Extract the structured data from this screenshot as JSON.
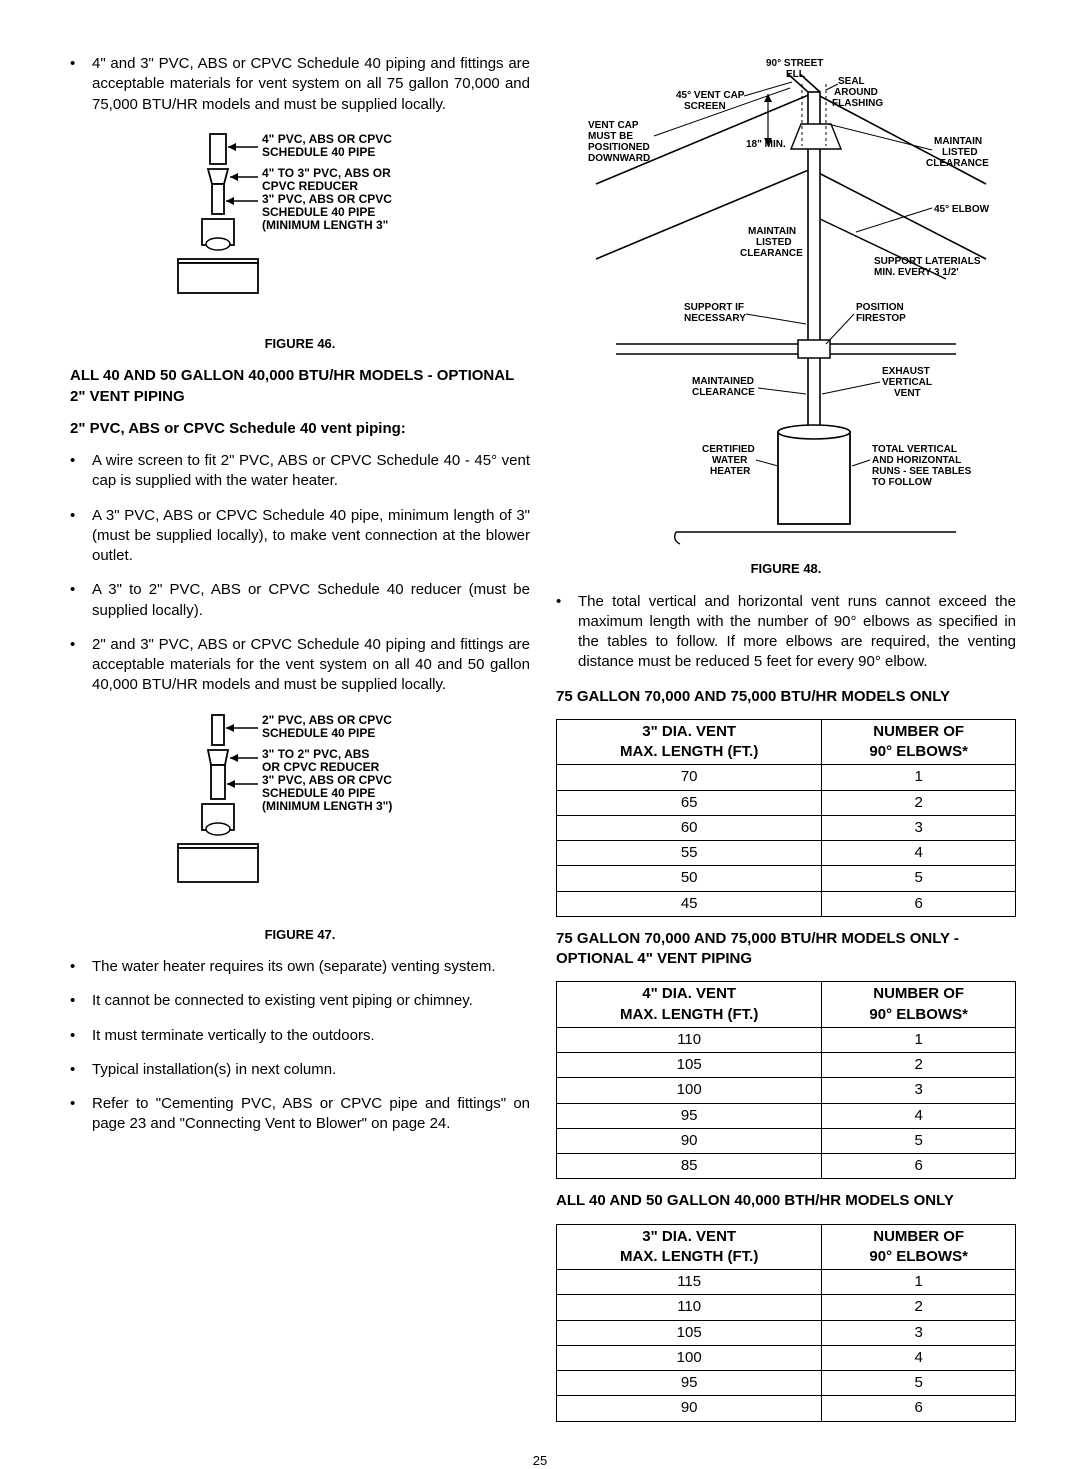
{
  "left": {
    "intro_bullet": "4\" and 3\" PVC, ABS or CPVC Schedule 40 piping and fittings are acceptable materials for vent system on all 75 gallon 70,000 and 75,000 BTU/HR models and must be supplied locally.",
    "fig46_caption": "FIGURE 46.",
    "fig46_labels": {
      "l1": "4\" PVC, ABS OR CPVC SCHEDULE 40 PIPE",
      "l2": "4\" TO 3\" PVC, ABS OR CPVC REDUCER",
      "l3": "3\" PVC, ABS OR CPVC SCHEDULE 40 PIPE (MINIMUM LENGTH 3\""
    },
    "hdr1": "ALL 40 AND 50 GALLON 40,000 BTU/HR MODELS - OPTIONAL 2\" VENT PIPING",
    "hdr2": "2\" PVC, ABS or CPVC Schedule 40 vent piping:",
    "bullets2": [
      "A wire screen to fit 2\" PVC, ABS or CPVC Schedule 40 - 45° vent cap is supplied with the water heater.",
      "A 3\" PVC, ABS or CPVC Schedule 40 pipe, minimum length of 3\" (must be supplied locally), to make vent connection at the blower outlet.",
      "A 3\" to 2\" PVC, ABS or CPVC Schedule 40 reducer (must be supplied locally).",
      "2\" and 3\" PVC, ABS or CPVC Schedule 40 piping and fittings are acceptable materials for the vent system on all 40 and 50 gallon 40,000 BTU/HR models and must be supplied locally."
    ],
    "fig47_caption": "FIGURE 47.",
    "fig47_labels": {
      "l1": "2\" PVC, ABS OR CPVC SCHEDULE 40 PIPE",
      "l2": "3\" TO 2\" PVC, ABS OR CPVC REDUCER",
      "l3": "3\" PVC, ABS OR CPVC SCHEDULE 40 PIPE (MINIMUM LENGTH 3\")"
    },
    "bullets3": [
      "The water heater requires its own (separate) venting system.",
      "It cannot be connected to existing vent piping or chimney.",
      "It must terminate vertically to the outdoors.",
      "Typical installation(s) in next column.",
      "Refer to \"Cementing PVC, ABS or CPVC pipe and fittings\" on page 23 and \"Connecting Vent to Blower\" on page 24."
    ]
  },
  "right": {
    "fig48_caption": "FIGURE 48.",
    "fig48_labels": {
      "street_ell": "90° STREET ELL",
      "vent_cap": "45° VENT CAP SCREEN",
      "seal": "SEAL AROUND FLASHING",
      "downward": "VENT CAP MUST BE POSITIONED DOWNWARD",
      "min18": "18\" MIN.",
      "maintain_listed_r": "MAINTAIN LISTED CLEARANCE",
      "elbow45": "45° ELBOW",
      "maintain_listed_c": "MAINTAIN LISTED CLEARANCE",
      "support_lat": "SUPPORT LATERIALS MIN. EVERY 3 1/2'",
      "support_if": "SUPPORT IF NECESSARY",
      "firestop": "POSITION FIRESTOP",
      "maintained_cl": "MAINTAINED CLEARANCE",
      "exhaust": "EXHAUST VERTICAL VENT",
      "certified": "CERTIFIED WATER HEATER",
      "total_runs": "TOTAL VERTICAL AND HORIZONTAL RUNS - SEE TABLES TO FOLLOW"
    },
    "intro_bullet": "The total vertical and horizontal vent runs cannot exceed the maximum length with the number of 90° elbows as specified in the tables to follow. If more elbows are required, the venting distance must be reduced 5 feet for every 90° elbow.",
    "table1_title": "75 GALLON 70,000 AND 75,000 BTU/HR MODELS ONLY",
    "table1": {
      "col1_hdr_l1": "3\" DIA. VENT",
      "col1_hdr_l2": "MAX. LENGTH (FT.)",
      "col2_hdr_l1": "NUMBER OF",
      "col2_hdr_l2": "90° ELBOWS*",
      "rows": [
        [
          "70",
          "1"
        ],
        [
          "65",
          "2"
        ],
        [
          "60",
          "3"
        ],
        [
          "55",
          "4"
        ],
        [
          "50",
          "5"
        ],
        [
          "45",
          "6"
        ]
      ]
    },
    "table2_title": "75 GALLON 70,000 AND 75,000 BTU/HR MODELS ONLY - OPTIONAL 4\" VENT PIPING",
    "table2": {
      "col1_hdr_l1": "4\" DIA. VENT",
      "col1_hdr_l2": "MAX. LENGTH (FT.)",
      "col2_hdr_l1": "NUMBER OF",
      "col2_hdr_l2": "90° ELBOWS*",
      "rows": [
        [
          "110",
          "1"
        ],
        [
          "105",
          "2"
        ],
        [
          "100",
          "3"
        ],
        [
          "95",
          "4"
        ],
        [
          "90",
          "5"
        ],
        [
          "85",
          "6"
        ]
      ]
    },
    "table3_title": "ALL 40 AND 50 GALLON 40,000 BTH/HR MODELS ONLY",
    "table3": {
      "col1_hdr_l1": "3\" DIA. VENT",
      "col1_hdr_l2": "MAX. LENGTH (FT.)",
      "col2_hdr_l1": "NUMBER OF",
      "col2_hdr_l2": "90° ELBOWS*",
      "rows": [
        [
          "115",
          "1"
        ],
        [
          "110",
          "2"
        ],
        [
          "105",
          "3"
        ],
        [
          "100",
          "4"
        ],
        [
          "95",
          "5"
        ],
        [
          "90",
          "6"
        ]
      ]
    }
  },
  "page_number": "25"
}
